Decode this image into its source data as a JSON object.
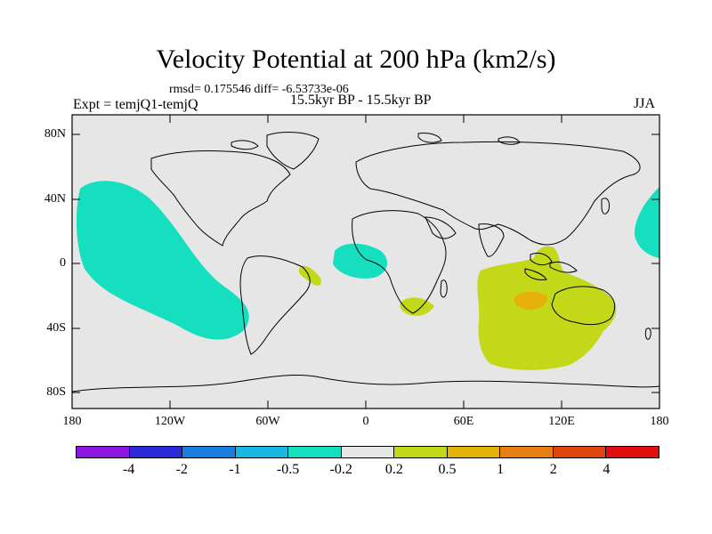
{
  "header": {
    "title": "Velocity Potential at 200 hPa (km2/s)",
    "stats": "rmsd= 0.175546 diff= -6.53733e-06",
    "experiment": "Expt = temjQ1-temjQ",
    "period": "15.5kyr BP - 15.5kyr BP",
    "season": "JJA"
  },
  "axes": {
    "lat_labels": [
      "80N",
      "40N",
      "0",
      "40S",
      "80S"
    ],
    "lon_labels": [
      "180",
      "120W",
      "60W",
      "0",
      "60E",
      "120E",
      "180"
    ]
  },
  "colorbar": {
    "colors": [
      "#8a16e0",
      "#2a2ad8",
      "#1a7ee0",
      "#18b8e0",
      "#16dfc0",
      "#e6e6e6",
      "#c4d81a",
      "#e6b10a",
      "#e48014",
      "#e0440e",
      "#e20e0e"
    ],
    "labels": [
      "-4",
      "-2",
      "-1",
      "-0.5",
      "-0.2",
      "0.2",
      "0.5",
      "1",
      "2",
      "4"
    ]
  },
  "map": {
    "background": "#e6e6e6",
    "positive_color": "#c4d81a",
    "positive_strong_color": "#e6b10a",
    "negative_color": "#16dfc0"
  }
}
